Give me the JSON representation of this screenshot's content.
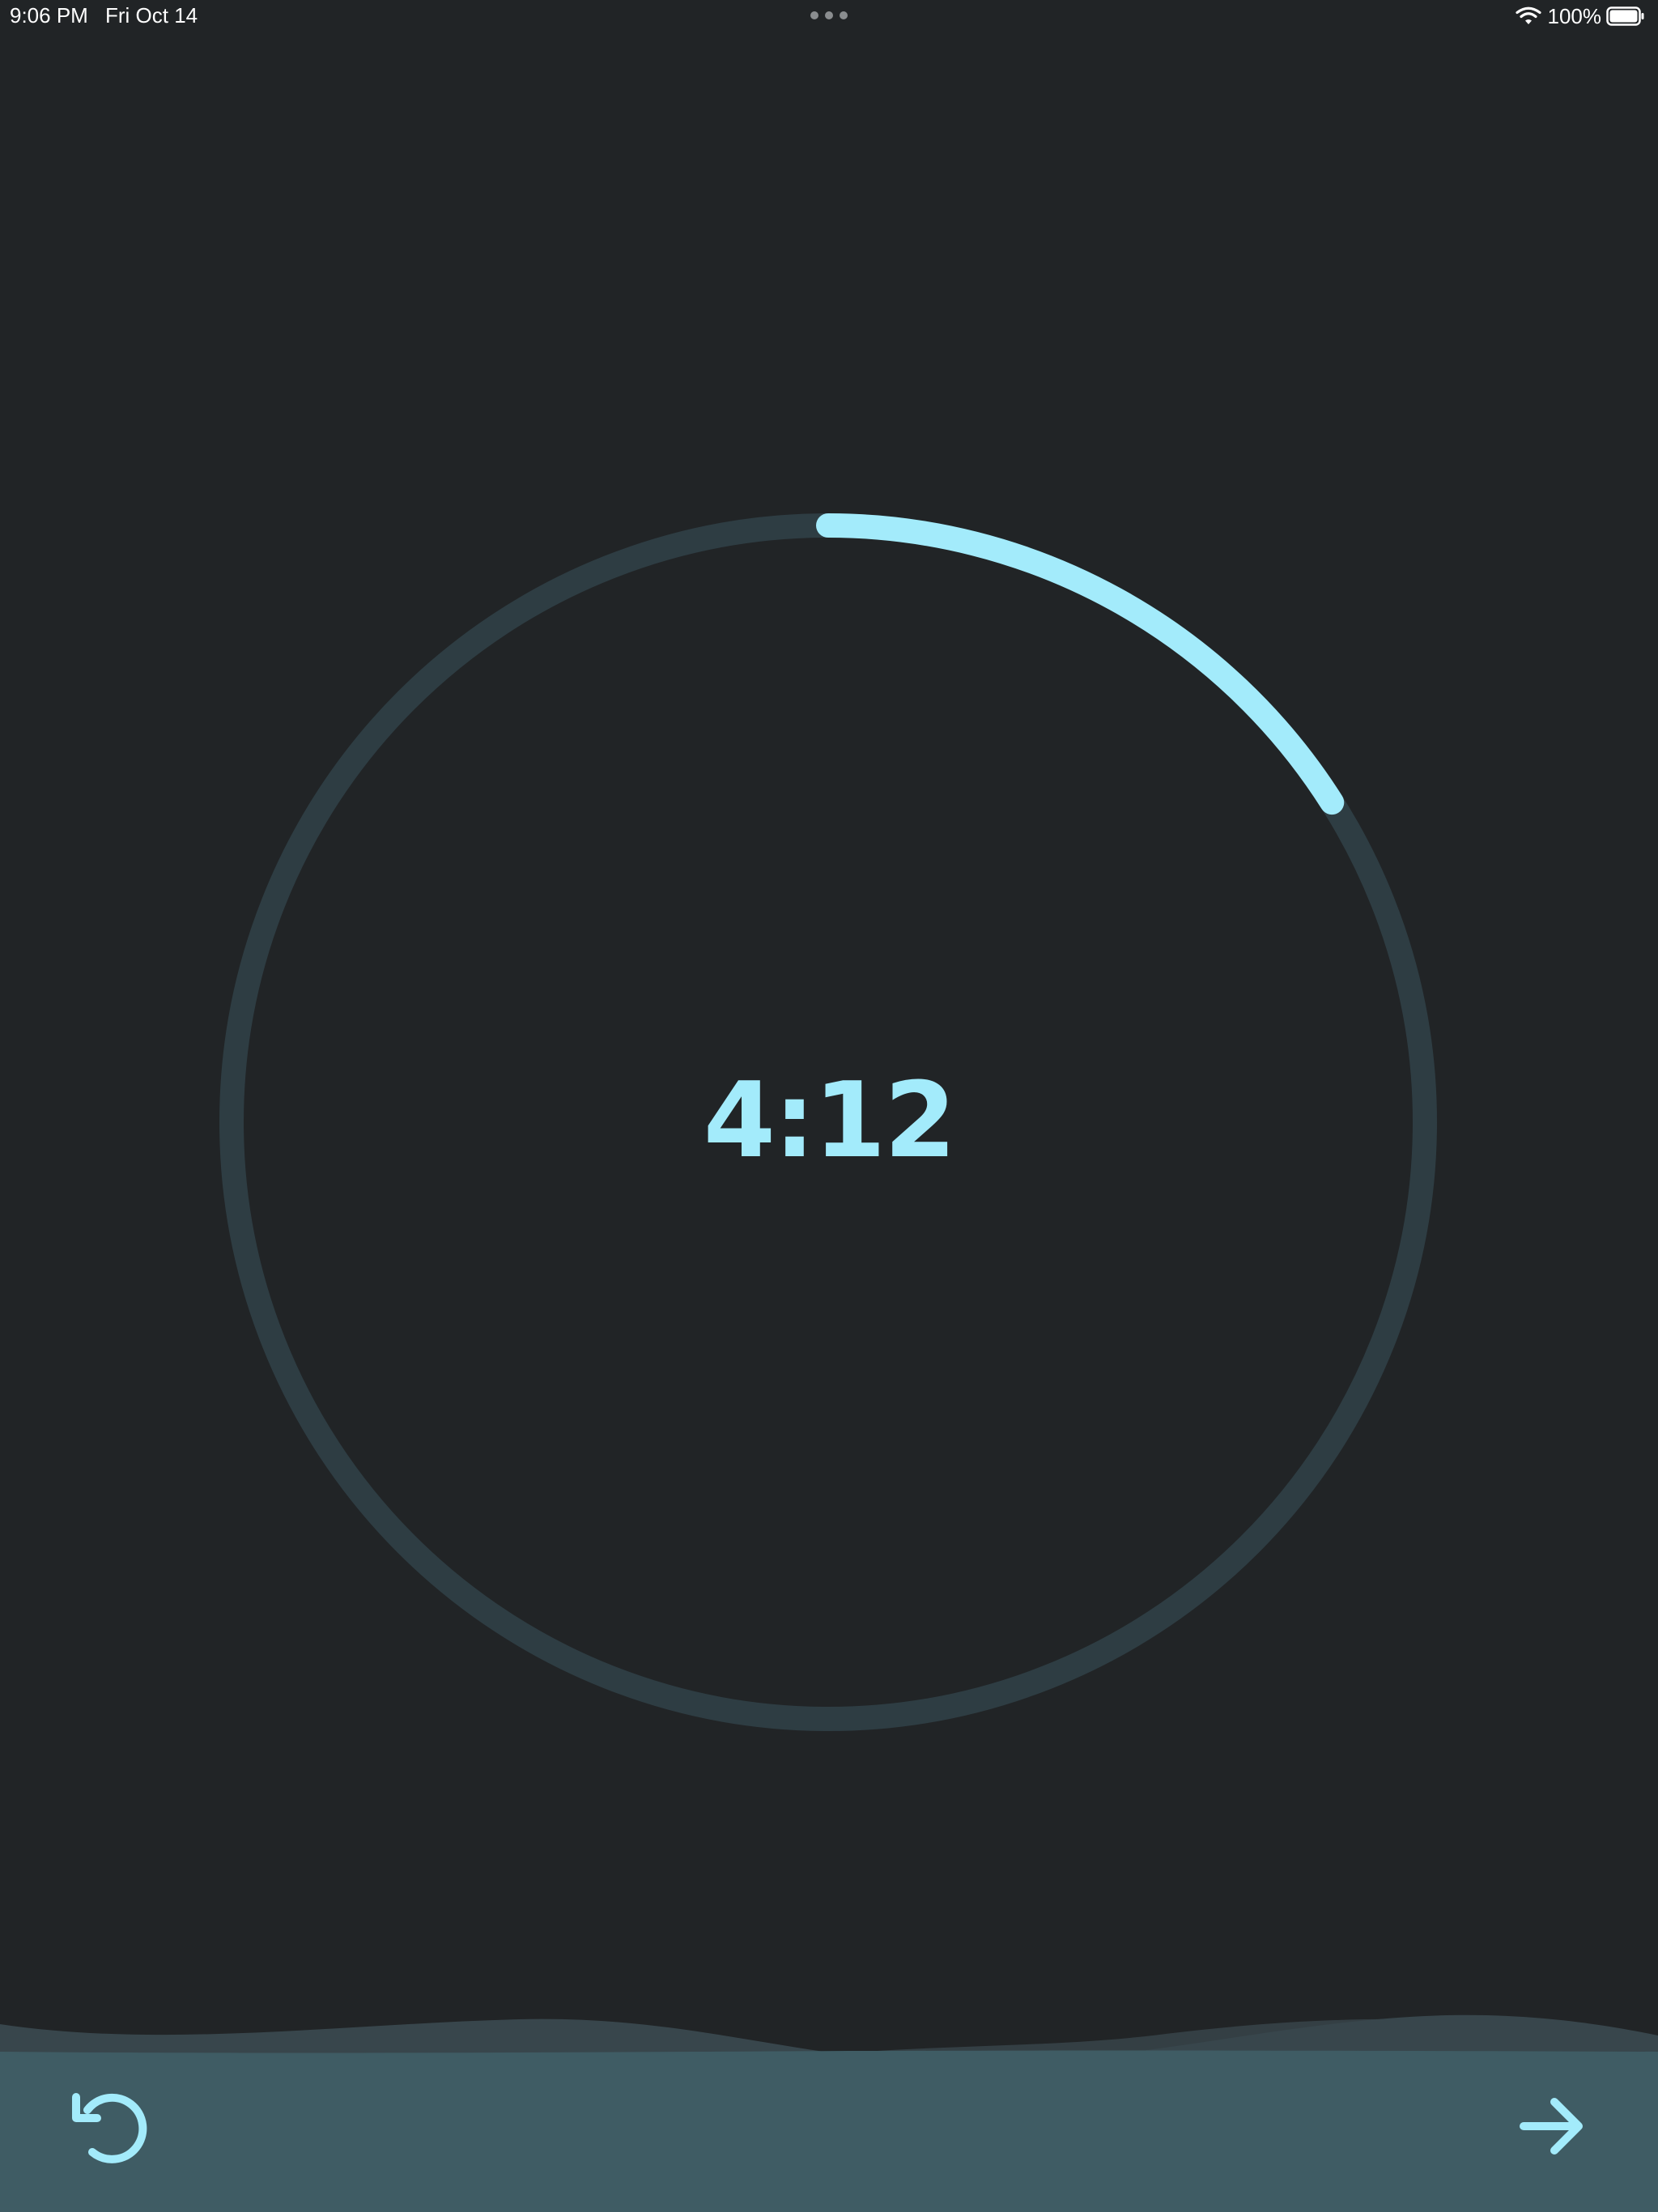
{
  "status_bar": {
    "time": "9:06 PM",
    "date": "Fri Oct 14",
    "battery_percent": "100%",
    "icons": [
      "multitasking-dots-icon",
      "wifi-icon",
      "battery-icon"
    ]
  },
  "timer": {
    "display": "4:12",
    "progress_fraction": 0.16,
    "colors": {
      "progress": "#a3ebfb",
      "track": "#2e3d43",
      "background": "#212426"
    }
  },
  "bottom_bar": {
    "background_color": "#3f5c64",
    "reset_icon": "reset-icon",
    "next_icon": "arrow-right-icon"
  }
}
